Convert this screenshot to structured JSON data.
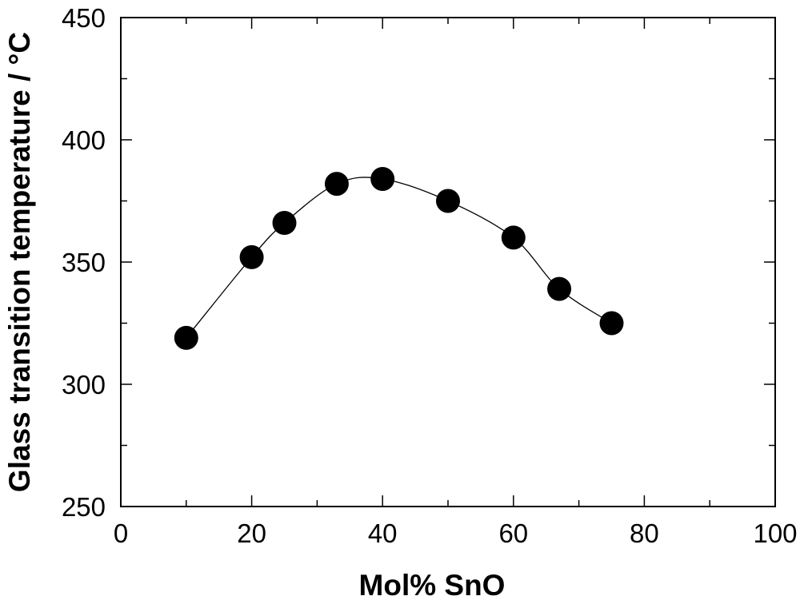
{
  "chart_data": {
    "type": "scatter",
    "title": "",
    "xlabel": "Mol% SnO",
    "ylabel": "Glass transition temperature / °C",
    "xlim": [
      0,
      100
    ],
    "ylim": [
      250,
      450
    ],
    "x_ticks": [
      0,
      20,
      40,
      60,
      80,
      100
    ],
    "x_tick_labels": [
      "0",
      "20",
      "40",
      "60",
      "80",
      "100"
    ],
    "y_ticks": [
      250,
      300,
      350,
      400,
      450
    ],
    "y_tick_labels": [
      "250",
      "300",
      "350",
      "400",
      "450"
    ],
    "grid": false,
    "legend": "none",
    "trend_line": "smooth curve through points",
    "series": [
      {
        "x": [
          10,
          20,
          25,
          33,
          40,
          50,
          60,
          67,
          75
        ],
        "y": [
          319,
          352,
          366,
          382,
          384,
          375,
          360,
          339,
          325
        ]
      }
    ],
    "colors": {
      "marker": "#000000",
      "line": "#000000",
      "background": "#ffffff"
    }
  }
}
